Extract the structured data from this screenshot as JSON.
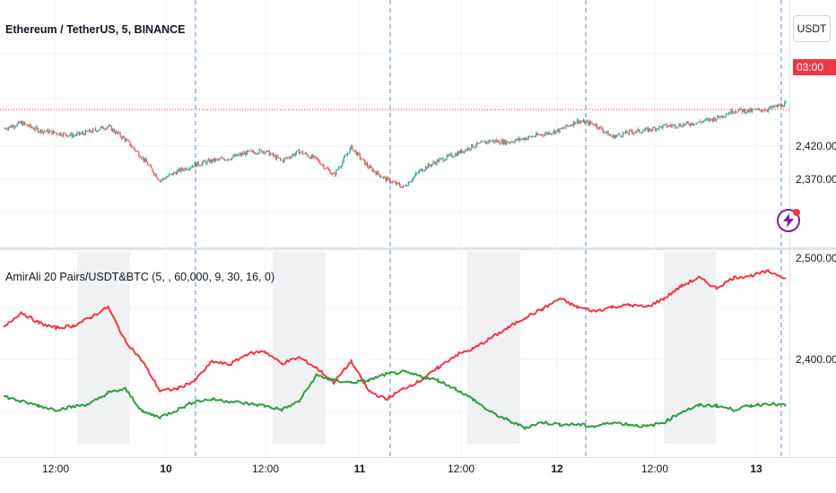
{
  "symbol": {
    "title": "Ethereum / TetherUS, 5, BINANCE",
    "currency_button": "USDT",
    "last_price_label": "03:00"
  },
  "indicator": {
    "label": "AmirAli 20 Pairs/USDT&BTC (5, , 60,000, 9, 30, 16, 0)"
  },
  "colors": {
    "up": "#26a69a",
    "down": "#ef5350",
    "line_red": "#f23645",
    "line_green": "#2e9e3e",
    "session_shade": "#f0f1f3",
    "divider": "#5b8bd6",
    "badge": "#f23645",
    "alert_icon": "#7b1fa2"
  },
  "icons": {
    "alert": "lightning-bolt-icon"
  },
  "chart_data": [
    {
      "type": "candlestick",
      "title": "Ethereum / TetherUS, 5, BINANCE",
      "y_ticks": [
        "2,420.00",
        "2,370.00"
      ],
      "x_ticks": [
        "12:00",
        "10",
        "12:00",
        "11",
        "12:00",
        "12",
        "12:00",
        "13"
      ],
      "path_points": [
        [
          0,
          2446
        ],
        [
          1,
          2455
        ],
        [
          2,
          2444
        ],
        [
          3,
          2440
        ],
        [
          4,
          2436
        ],
        [
          5,
          2442
        ],
        [
          6,
          2450
        ],
        [
          7,
          2430
        ],
        [
          8,
          2402
        ],
        [
          9,
          2368
        ],
        [
          10,
          2382
        ],
        [
          11,
          2392
        ],
        [
          12,
          2398
        ],
        [
          13,
          2402
        ],
        [
          14,
          2410
        ],
        [
          15,
          2413
        ],
        [
          16,
          2398
        ],
        [
          17,
          2412
        ],
        [
          18,
          2400
        ],
        [
          19,
          2376
        ],
        [
          20,
          2418
        ],
        [
          21,
          2388
        ],
        [
          22,
          2370
        ],
        [
          23,
          2358
        ],
        [
          24,
          2384
        ],
        [
          25,
          2398
        ],
        [
          26,
          2408
        ],
        [
          27,
          2420
        ],
        [
          28,
          2428
        ],
        [
          29,
          2426
        ],
        [
          30,
          2432
        ],
        [
          31,
          2438
        ],
        [
          32,
          2444
        ],
        [
          33,
          2458
        ],
        [
          34,
          2453
        ],
        [
          35,
          2434
        ],
        [
          36,
          2441
        ],
        [
          37,
          2444
        ],
        [
          38,
          2450
        ],
        [
          39,
          2452
        ],
        [
          40,
          2456
        ],
        [
          41,
          2462
        ],
        [
          42,
          2474
        ],
        [
          43,
          2473
        ],
        [
          44,
          2476
        ],
        [
          45,
          2484
        ]
      ],
      "last_price_line": 2475
    },
    {
      "type": "line",
      "title": "AmirAli 20 Pairs/USDT&BTC (5, , 60,000, 9, 30, 16, 0)",
      "y_ticks": [
        "2,500.00",
        "2,400.00"
      ],
      "series": [
        {
          "color": "#f23645",
          "points": [
            [
              0,
              2430
            ],
            [
              1,
              2445
            ],
            [
              2,
              2435
            ],
            [
              3,
              2430
            ],
            [
              4,
              2432
            ],
            [
              5,
              2440
            ],
            [
              6,
              2450
            ],
            [
              7,
              2418
            ],
            [
              8,
              2398
            ],
            [
              9,
              2370
            ],
            [
              10,
              2372
            ],
            [
              11,
              2380
            ],
            [
              12,
              2398
            ],
            [
              13,
              2395
            ],
            [
              14,
              2405
            ],
            [
              15,
              2408
            ],
            [
              16,
              2396
            ],
            [
              17,
              2402
            ],
            [
              18,
              2392
            ],
            [
              19,
              2378
            ],
            [
              20,
              2398
            ],
            [
              21,
              2370
            ],
            [
              22,
              2362
            ],
            [
              23,
              2372
            ],
            [
              24,
              2380
            ],
            [
              25,
              2392
            ],
            [
              26,
              2404
            ],
            [
              27,
              2410
            ],
            [
              28,
              2420
            ],
            [
              29,
              2430
            ],
            [
              30,
              2440
            ],
            [
              31,
              2448
            ],
            [
              32,
              2458
            ],
            [
              33,
              2450
            ],
            [
              34,
              2446
            ],
            [
              35,
              2450
            ],
            [
              36,
              2452
            ],
            [
              37,
              2450
            ],
            [
              38,
              2458
            ],
            [
              39,
              2470
            ],
            [
              40,
              2478
            ],
            [
              41,
              2468
            ],
            [
              42,
              2478
            ],
            [
              43,
              2480
            ],
            [
              44,
              2484
            ],
            [
              45,
              2478
            ]
          ]
        },
        {
          "color": "#2e9e3e",
          "points": [
            [
              0,
              2365
            ],
            [
              1,
              2360
            ],
            [
              2,
              2356
            ],
            [
              3,
              2352
            ],
            [
              4,
              2355
            ],
            [
              5,
              2358
            ],
            [
              6,
              2368
            ],
            [
              7,
              2372
            ],
            [
              8,
              2350
            ],
            [
              9,
              2345
            ],
            [
              10,
              2352
            ],
            [
              11,
              2360
            ],
            [
              12,
              2362
            ],
            [
              13,
              2360
            ],
            [
              14,
              2358
            ],
            [
              15,
              2356
            ],
            [
              16,
              2352
            ],
            [
              17,
              2360
            ],
            [
              18,
              2385
            ],
            [
              19,
              2380
            ],
            [
              20,
              2378
            ],
            [
              21,
              2380
            ],
            [
              22,
              2386
            ],
            [
              23,
              2388
            ],
            [
              24,
              2384
            ],
            [
              25,
              2380
            ],
            [
              26,
              2372
            ],
            [
              27,
              2362
            ],
            [
              28,
              2350
            ],
            [
              29,
              2342
            ],
            [
              30,
              2335
            ],
            [
              31,
              2340
            ],
            [
              32,
              2338
            ],
            [
              33,
              2338
            ],
            [
              34,
              2336
            ],
            [
              35,
              2340
            ],
            [
              36,
              2338
            ],
            [
              37,
              2336
            ],
            [
              38,
              2340
            ],
            [
              39,
              2350
            ],
            [
              40,
              2356
            ],
            [
              41,
              2356
            ],
            [
              42,
              2352
            ],
            [
              43,
              2356
            ],
            [
              44,
              2358
            ],
            [
              45,
              2356
            ]
          ]
        }
      ]
    }
  ]
}
